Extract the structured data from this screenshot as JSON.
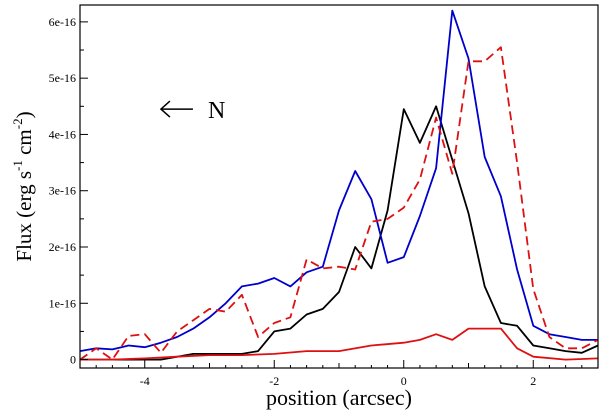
{
  "chart_data": {
    "type": "line",
    "title": "",
    "xlabel": "position (arcsec)",
    "ylabel": {
      "main": "Flux (erg s",
      "exp1": "-1",
      "mid": " cm",
      "exp2": "-2",
      "close": ")"
    },
    "xlim": [
      -5,
      3
    ],
    "ylim": [
      -1.5e-17,
      6.3e-16
    ],
    "x_ticks": [
      {
        "value": -4,
        "label": "-4"
      },
      {
        "value": -2,
        "label": "-2"
      },
      {
        "value": 0,
        "label": "0"
      },
      {
        "value": 2,
        "label": "2"
      }
    ],
    "y_ticks": [
      {
        "value": 0,
        "label": "0"
      },
      {
        "value": 1e-16,
        "label": "1e-16"
      },
      {
        "value": 2e-16,
        "label": "2e-16"
      },
      {
        "value": 3e-16,
        "label": "3e-16"
      },
      {
        "value": 4e-16,
        "label": "4e-16"
      },
      {
        "value": 5e-16,
        "label": "5e-16"
      },
      {
        "value": 6e-16,
        "label": "6e-16"
      }
    ],
    "grid": false,
    "legend": "none",
    "annotation": {
      "text": "N",
      "arrow": "left",
      "x": -3.75,
      "y": 4.45e-16
    },
    "series": [
      {
        "color": "#000000",
        "dash": "solid",
        "points": [
          [
            -5,
            0.0
          ],
          [
            -4.75,
            0.0
          ],
          [
            -4.5,
            0.0
          ],
          [
            -4.25,
            0.0
          ],
          [
            -4.0,
            0.0
          ],
          [
            -3.75,
            0.0
          ],
          [
            -3.5,
            5e-18
          ],
          [
            -3.25,
            1e-17
          ],
          [
            -3.0,
            1e-17
          ],
          [
            -2.75,
            1e-17
          ],
          [
            -2.5,
            1e-17
          ],
          [
            -2.25,
            1.5e-17
          ],
          [
            -2.0,
            5e-17
          ],
          [
            -1.75,
            5.5e-17
          ],
          [
            -1.5,
            8e-17
          ],
          [
            -1.25,
            9e-17
          ],
          [
            -1.0,
            1.2e-16
          ],
          [
            -0.75,
            2e-16
          ],
          [
            -0.5,
            1.62e-16
          ],
          [
            -0.25,
            2.65e-16
          ],
          [
            0.0,
            4.45e-16
          ],
          [
            0.25,
            3.85e-16
          ],
          [
            0.5,
            4.5e-16
          ],
          [
            0.75,
            3.55e-16
          ],
          [
            1.0,
            2.6e-16
          ],
          [
            1.25,
            1.3e-16
          ],
          [
            1.5,
            6.5e-17
          ],
          [
            1.75,
            6e-17
          ],
          [
            2.0,
            2.5e-17
          ],
          [
            2.25,
            2e-17
          ],
          [
            2.5,
            1.5e-17
          ],
          [
            2.75,
            1.2e-17
          ],
          [
            3.0,
            2.5e-17
          ]
        ]
      },
      {
        "color": "#0000cc",
        "dash": "solid",
        "points": [
          [
            -5,
            1.5e-17
          ],
          [
            -4.75,
            2e-17
          ],
          [
            -4.5,
            1.8e-17
          ],
          [
            -4.25,
            2.5e-17
          ],
          [
            -4.0,
            2.2e-17
          ],
          [
            -3.75,
            3e-17
          ],
          [
            -3.5,
            4e-17
          ],
          [
            -3.25,
            5.5e-17
          ],
          [
            -3.0,
            7.5e-17
          ],
          [
            -2.75,
            1e-16
          ],
          [
            -2.5,
            1.3e-16
          ],
          [
            -2.25,
            1.35e-16
          ],
          [
            -2.0,
            1.45e-16
          ],
          [
            -1.75,
            1.3e-16
          ],
          [
            -1.5,
            1.55e-16
          ],
          [
            -1.25,
            1.65e-16
          ],
          [
            -1.0,
            2.65e-16
          ],
          [
            -0.75,
            3.35e-16
          ],
          [
            -0.5,
            2.85e-16
          ],
          [
            -0.25,
            1.72e-16
          ],
          [
            0.0,
            1.82e-16
          ],
          [
            0.25,
            2.55e-16
          ],
          [
            0.5,
            3.4e-16
          ],
          [
            0.75,
            6.2e-16
          ],
          [
            1.0,
            5.35e-16
          ],
          [
            1.25,
            3.6e-16
          ],
          [
            1.5,
            2.9e-16
          ],
          [
            1.75,
            1.6e-16
          ],
          [
            2.0,
            6e-17
          ],
          [
            2.25,
            4.5e-17
          ],
          [
            2.5,
            4e-17
          ],
          [
            2.75,
            3.5e-17
          ],
          [
            3.0,
            3.5e-17
          ]
        ]
      },
      {
        "color": "#dd1111",
        "dash": "dashed",
        "points": [
          [
            -5,
            0.0
          ],
          [
            -4.75,
            2e-17
          ],
          [
            -4.5,
            0.0
          ],
          [
            -4.25,
            4.2e-17
          ],
          [
            -4.0,
            4.5e-17
          ],
          [
            -3.75,
            1.2e-17
          ],
          [
            -3.5,
            5e-17
          ],
          [
            -3.25,
            7e-17
          ],
          [
            -3.0,
            9e-17
          ],
          [
            -2.75,
            8.5e-17
          ],
          [
            -2.5,
            1.15e-16
          ],
          [
            -2.25,
            4e-17
          ],
          [
            -2.0,
            6.5e-17
          ],
          [
            -1.75,
            7.5e-17
          ],
          [
            -1.5,
            1.78e-16
          ],
          [
            -1.25,
            1.62e-16
          ],
          [
            -1.0,
            1.65e-16
          ],
          [
            -0.75,
            1.6e-16
          ],
          [
            -0.5,
            2.45e-16
          ],
          [
            -0.25,
            2.5e-16
          ],
          [
            0.0,
            2.7e-16
          ],
          [
            0.25,
            3.2e-16
          ],
          [
            0.5,
            4.3e-16
          ],
          [
            0.75,
            3.3e-16
          ],
          [
            1.0,
            5.3e-16
          ],
          [
            1.25,
            5.3e-16
          ],
          [
            1.5,
            5.55e-16
          ],
          [
            1.75,
            3.5e-16
          ],
          [
            2.0,
            1.25e-16
          ],
          [
            2.25,
            4e-17
          ],
          [
            2.5,
            2e-17
          ],
          [
            2.75,
            2e-17
          ],
          [
            3.0,
            3.5e-17
          ]
        ]
      },
      {
        "color": "#dd1111",
        "dash": "solid",
        "points": [
          [
            -5,
            0.0
          ],
          [
            -4.5,
            0.0
          ],
          [
            -4.0,
            2e-18
          ],
          [
            -3.5,
            5e-18
          ],
          [
            -3.0,
            8e-18
          ],
          [
            -2.5,
            8e-18
          ],
          [
            -2.0,
            1e-17
          ],
          [
            -1.5,
            1.5e-17
          ],
          [
            -1.0,
            1.5e-17
          ],
          [
            -0.5,
            2.5e-17
          ],
          [
            0.0,
            3e-17
          ],
          [
            0.25,
            3.5e-17
          ],
          [
            0.5,
            4.5e-17
          ],
          [
            0.75,
            3.5e-17
          ],
          [
            1.0,
            5.5e-17
          ],
          [
            1.25,
            5.5e-17
          ],
          [
            1.5,
            5.5e-17
          ],
          [
            1.75,
            2e-17
          ],
          [
            2.0,
            5e-18
          ],
          [
            2.5,
            0.0
          ],
          [
            3.0,
            2e-18
          ]
        ]
      }
    ]
  }
}
